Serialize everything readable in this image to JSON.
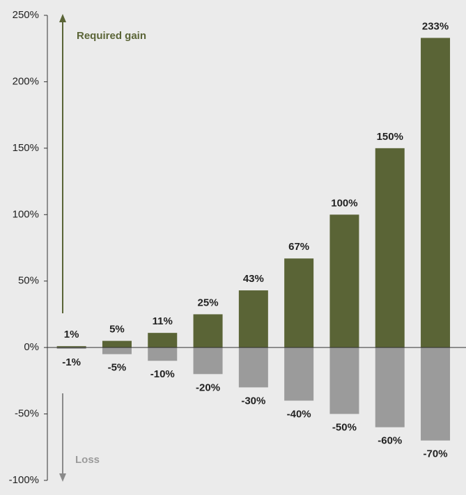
{
  "chart_data": {
    "type": "bar",
    "annotations": [
      "Required gain",
      "Loss"
    ],
    "series": [
      {
        "color": "#5a6436",
        "values": [
          1,
          5,
          11,
          25,
          43,
          67,
          100,
          150,
          233
        ],
        "value_labels": [
          "1%",
          "5%",
          "11%",
          "25%",
          "43%",
          "67%",
          "100%",
          "150%",
          "233%"
        ]
      },
      {
        "color": "#9b9b9b",
        "values": [
          -1,
          -5,
          -10,
          -20,
          -30,
          -40,
          -50,
          -60,
          -70
        ],
        "value_labels": [
          "-1%",
          "-5%",
          "-10%",
          "-20%",
          "-30%",
          "-40%",
          "-50%",
          "-60%",
          "-70%"
        ]
      }
    ],
    "ylim": [
      -100,
      250
    ],
    "yticks": [
      {
        "value": -100,
        "label": "-100%"
      },
      {
        "value": -50,
        "label": "-50%"
      },
      {
        "value": 0,
        "label": "0%"
      },
      {
        "value": 50,
        "label": "50%"
      },
      {
        "value": 100,
        "label": "100%"
      },
      {
        "value": 150,
        "label": "150%"
      },
      {
        "value": 200,
        "label": "200%"
      },
      {
        "value": 250,
        "label": "250%"
      }
    ],
    "grid": false
  }
}
